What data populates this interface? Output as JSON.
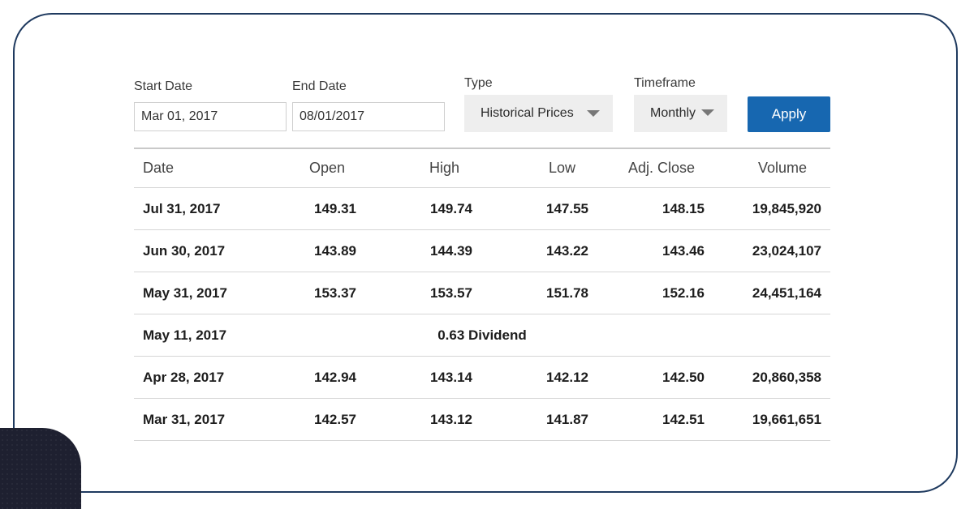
{
  "filters": {
    "start_date": {
      "label": "Start Date",
      "value": "Mar 01, 2017"
    },
    "end_date": {
      "label": "End Date",
      "value": "08/01/2017"
    },
    "type": {
      "label": "Type",
      "selected": "Historical Prices"
    },
    "timeframe": {
      "label": "Timeframe",
      "selected": "Monthly"
    },
    "apply_label": "Apply"
  },
  "colors": {
    "accent": "#1767b0",
    "frame_border": "#1f3a5f",
    "corner_block": "#1e2030"
  },
  "table": {
    "columns": [
      "Date",
      "Open",
      "High",
      "Low",
      "Adj. Close",
      "Volume"
    ],
    "rows": [
      {
        "date": "Jul 31, 2017",
        "open": "149.31",
        "high": "149.74",
        "low": "147.55",
        "adj_close": "148.15",
        "volume": "19,845,920"
      },
      {
        "date": "Jun 30, 2017",
        "open": "143.89",
        "high": "144.39",
        "low": "143.22",
        "adj_close": "143.46",
        "volume": "23,024,107"
      },
      {
        "date": "May 31, 2017",
        "open": "153.37",
        "high": "153.57",
        "low": "151.78",
        "adj_close": "152.16",
        "volume": "24,451,164"
      },
      {
        "date": "May 11, 2017",
        "note": "0.63 Dividend"
      },
      {
        "date": "Apr 28, 2017",
        "open": "142.94",
        "high": "143.14",
        "low": "142.12",
        "adj_close": "142.50",
        "volume": "20,860,358"
      },
      {
        "date": "Mar 31, 2017",
        "open": "142.57",
        "high": "143.12",
        "low": "141.87",
        "adj_close": "142.51",
        "volume": "19,661,651"
      }
    ]
  }
}
